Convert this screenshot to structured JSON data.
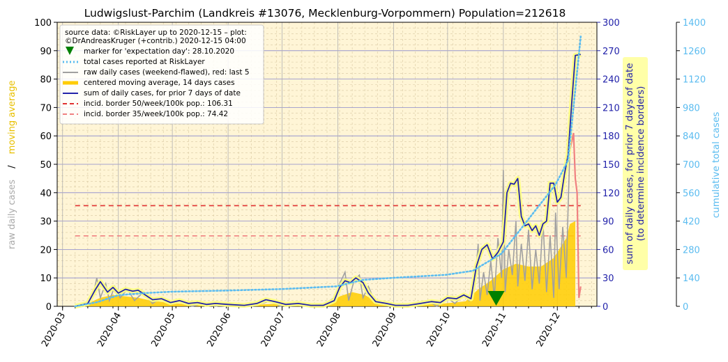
{
  "chart_data": {
    "type": "line",
    "title": "Ludwigslust-Parchim (Landkreis #13076, Mecklenburg-Vorpommern) Population=212618",
    "left_axis": {
      "label_raw": "raw daily cases",
      "label_sep": "/",
      "label_ma": "moving average",
      "ylim": [
        0,
        100
      ],
      "ticks": [
        "0",
        "10",
        "20",
        "30",
        "40",
        "50",
        "60",
        "70",
        "80",
        "90",
        "100"
      ]
    },
    "right_axis_1": {
      "label_line1": "sum of daily cases, for prior 7 days of date",
      "label_line2": "(to determine incidence borders)",
      "ylim": [
        0,
        300
      ],
      "ticks": [
        "0",
        "30",
        "60",
        "90",
        "120",
        "150",
        "180",
        "210",
        "240",
        "270",
        "300"
      ]
    },
    "right_axis_2": {
      "label": "cumulative total cases",
      "ylim": [
        0,
        1400
      ],
      "ticks": [
        "0",
        "140",
        "280",
        "420",
        "560",
        "700",
        "840",
        "980",
        "1120",
        "1260",
        "1400"
      ]
    },
    "x_axis": {
      "range": [
        "2020-02-27",
        "2020-12-23"
      ],
      "tick_dates": [
        "2020-03-01",
        "2020-04-01",
        "2020-05-01",
        "2020-06-01",
        "2020-07-01",
        "2020-08-01",
        "2020-09-01",
        "2020-10-01",
        "2020-11-01",
        "2020-12-01"
      ],
      "tick_labels": [
        "2020-03",
        "2020-04",
        "2020-05",
        "2020-06",
        "2020-07",
        "2020-08",
        "2020-09",
        "2020-10",
        "2020-11",
        "2020-12"
      ]
    },
    "legend": {
      "source_line1": "source data: ©RiskLayer up to 2020-12-15 – plot:",
      "source_line2": "©DrAndreasKruger (+contrib.) 2020-12-15 04:00",
      "items": [
        "marker for 'expectation day': 28.10.2020",
        "total cases reported at RiskLayer",
        "raw daily cases (weekend-flawed), red: last 5",
        "centered moving average, 14 days cases",
        "sum of daily cases, for prior 7 days of date",
        "incid. border 50/week/100k pop.: 106.31",
        "incid. border 35/week/100k pop.: 74.42"
      ]
    },
    "expectation_day": "2020-10-28",
    "incidence_50": 106.31,
    "incidence_35": 74.42,
    "colors": {
      "raw": "#a0a0a0",
      "raw_recent": "#f08080",
      "moving_average": "#ffcc00",
      "sum7": "#2222aa",
      "cumulative": "#5bbcf0",
      "incid50": "#e03030",
      "incid35": "#f08080",
      "marker": "#008000",
      "plot_bg": "#fff5d6"
    },
    "series": [
      {
        "name": "raw daily cases",
        "axis": "left",
        "points": [
          [
            "2020-03-08",
            0
          ],
          [
            "2020-03-15",
            1
          ],
          [
            "2020-03-18",
            4
          ],
          [
            "2020-03-20",
            10
          ],
          [
            "2020-03-22",
            3
          ],
          [
            "2020-03-25",
            8
          ],
          [
            "2020-03-27",
            2
          ],
          [
            "2020-03-30",
            7
          ],
          [
            "2020-04-02",
            3
          ],
          [
            "2020-04-06",
            6
          ],
          [
            "2020-04-10",
            2
          ],
          [
            "2020-04-15",
            5
          ],
          [
            "2020-04-20",
            1
          ],
          [
            "2020-04-25",
            3
          ],
          [
            "2020-05-01",
            1
          ],
          [
            "2020-05-06",
            2
          ],
          [
            "2020-05-12",
            0
          ],
          [
            "2020-05-18",
            1
          ],
          [
            "2020-05-25",
            0
          ],
          [
            "2020-06-01",
            1
          ],
          [
            "2020-06-10",
            0
          ],
          [
            "2020-06-20",
            1
          ],
          [
            "2020-06-25",
            2
          ],
          [
            "2020-06-30",
            0
          ],
          [
            "2020-07-05",
            1
          ],
          [
            "2020-07-15",
            0
          ],
          [
            "2020-07-25",
            1
          ],
          [
            "2020-07-30",
            3
          ],
          [
            "2020-08-02",
            8
          ],
          [
            "2020-08-05",
            12
          ],
          [
            "2020-08-07",
            2
          ],
          [
            "2020-08-10",
            9
          ],
          [
            "2020-08-13",
            11
          ],
          [
            "2020-08-15",
            3
          ],
          [
            "2020-08-18",
            7
          ],
          [
            "2020-08-22",
            1
          ],
          [
            "2020-08-28",
            1
          ],
          [
            "2020-09-05",
            0
          ],
          [
            "2020-09-12",
            1
          ],
          [
            "2020-09-20",
            2
          ],
          [
            "2020-09-25",
            0
          ],
          [
            "2020-10-01",
            3
          ],
          [
            "2020-10-05",
            1
          ],
          [
            "2020-10-10",
            4
          ],
          [
            "2020-10-13",
            2
          ],
          [
            "2020-10-16",
            6
          ],
          [
            "2020-10-18",
            22
          ],
          [
            "2020-10-19",
            2
          ],
          [
            "2020-10-21",
            12
          ],
          [
            "2020-10-23",
            4
          ],
          [
            "2020-10-25",
            16
          ],
          [
            "2020-10-27",
            3
          ],
          [
            "2020-10-29",
            24
          ],
          [
            "2020-10-31",
            10
          ],
          [
            "2020-11-01",
            48
          ],
          [
            "2020-11-02",
            5
          ],
          [
            "2020-11-04",
            20
          ],
          [
            "2020-11-06",
            11
          ],
          [
            "2020-11-08",
            30
          ],
          [
            "2020-11-09",
            7
          ],
          [
            "2020-11-11",
            22
          ],
          [
            "2020-11-13",
            9
          ],
          [
            "2020-11-15",
            27
          ],
          [
            "2020-11-17",
            6
          ],
          [
            "2020-11-19",
            20
          ],
          [
            "2020-11-21",
            8
          ],
          [
            "2020-11-23",
            30
          ],
          [
            "2020-11-25",
            5
          ],
          [
            "2020-11-27",
            25
          ],
          [
            "2020-11-29",
            3
          ],
          [
            "2020-11-30",
            33
          ],
          [
            "2020-12-02",
            6
          ],
          [
            "2020-12-04",
            28
          ],
          [
            "2020-12-06",
            10
          ],
          [
            "2020-12-07",
            35
          ],
          [
            "2020-12-08",
            55
          ]
        ]
      },
      {
        "name": "raw daily cases, last 5",
        "axis": "left",
        "points": [
          [
            "2020-12-10",
            61
          ],
          [
            "2020-12-11",
            45
          ],
          [
            "2020-12-12",
            40
          ],
          [
            "2020-12-13",
            3
          ],
          [
            "2020-12-14",
            7
          ]
        ]
      },
      {
        "name": "centered moving average, 14 days cases",
        "axis": "left",
        "points": [
          [
            "2020-03-08",
            0
          ],
          [
            "2020-03-15",
            1
          ],
          [
            "2020-03-22",
            3
          ],
          [
            "2020-03-29",
            4
          ],
          [
            "2020-04-05",
            3.5
          ],
          [
            "2020-04-12",
            3
          ],
          [
            "2020-04-19",
            2
          ],
          [
            "2020-04-26",
            1.5
          ],
          [
            "2020-05-03",
            1
          ],
          [
            "2020-05-10",
            0.8
          ],
          [
            "2020-05-17",
            0.5
          ],
          [
            "2020-05-24",
            0.5
          ],
          [
            "2020-05-31",
            0.4
          ],
          [
            "2020-06-07",
            0.3
          ],
          [
            "2020-06-14",
            0.4
          ],
          [
            "2020-06-21",
            0.7
          ],
          [
            "2020-06-28",
            0.9
          ],
          [
            "2020-07-05",
            0.5
          ],
          [
            "2020-07-12",
            0.3
          ],
          [
            "2020-07-19",
            0.3
          ],
          [
            "2020-07-26",
            1
          ],
          [
            "2020-08-02",
            3.5
          ],
          [
            "2020-08-09",
            5
          ],
          [
            "2020-08-16",
            4
          ],
          [
            "2020-08-23",
            1.5
          ],
          [
            "2020-08-30",
            0.5
          ],
          [
            "2020-09-06",
            0.4
          ],
          [
            "2020-09-13",
            0.5
          ],
          [
            "2020-09-20",
            0.7
          ],
          [
            "2020-09-27",
            0.9
          ],
          [
            "2020-10-04",
            1.3
          ],
          [
            "2020-10-11",
            1.8
          ],
          [
            "2020-10-18",
            6
          ],
          [
            "2020-10-25",
            9
          ],
          [
            "2020-11-01",
            13
          ],
          [
            "2020-11-08",
            15
          ],
          [
            "2020-11-15",
            14
          ],
          [
            "2020-11-22",
            14
          ],
          [
            "2020-11-29",
            17
          ],
          [
            "2020-12-06",
            24
          ],
          [
            "2020-12-08",
            29
          ],
          [
            "2020-12-11",
            30
          ]
        ]
      },
      {
        "name": "sum of daily cases, for prior 7 days of date",
        "axis": "right1",
        "points": [
          [
            "2020-03-08",
            0
          ],
          [
            "2020-03-15",
            3
          ],
          [
            "2020-03-19",
            17
          ],
          [
            "2020-03-22",
            26
          ],
          [
            "2020-03-26",
            15
          ],
          [
            "2020-03-29",
            20
          ],
          [
            "2020-04-01",
            14
          ],
          [
            "2020-04-05",
            18
          ],
          [
            "2020-04-09",
            16
          ],
          [
            "2020-04-12",
            17
          ],
          [
            "2020-04-16",
            12
          ],
          [
            "2020-04-20",
            7
          ],
          [
            "2020-04-25",
            8
          ],
          [
            "2020-04-30",
            4
          ],
          [
            "2020-05-05",
            6
          ],
          [
            "2020-05-10",
            3
          ],
          [
            "2020-05-15",
            4
          ],
          [
            "2020-05-20",
            2
          ],
          [
            "2020-05-25",
            3
          ],
          [
            "2020-06-01",
            2
          ],
          [
            "2020-06-10",
            1
          ],
          [
            "2020-06-17",
            3
          ],
          [
            "2020-06-22",
            7
          ],
          [
            "2020-06-27",
            5
          ],
          [
            "2020-07-03",
            2
          ],
          [
            "2020-07-10",
            3
          ],
          [
            "2020-07-17",
            1
          ],
          [
            "2020-07-24",
            1
          ],
          [
            "2020-07-30",
            6
          ],
          [
            "2020-08-02",
            20
          ],
          [
            "2020-08-05",
            27
          ],
          [
            "2020-08-08",
            25
          ],
          [
            "2020-08-11",
            30
          ],
          [
            "2020-08-15",
            25
          ],
          [
            "2020-08-18",
            14
          ],
          [
            "2020-08-22",
            5
          ],
          [
            "2020-08-28",
            3
          ],
          [
            "2020-09-02",
            1
          ],
          [
            "2020-09-09",
            1
          ],
          [
            "2020-09-16",
            3
          ],
          [
            "2020-09-22",
            5
          ],
          [
            "2020-09-27",
            4
          ],
          [
            "2020-10-01",
            9
          ],
          [
            "2020-10-06",
            8
          ],
          [
            "2020-10-10",
            12
          ],
          [
            "2020-10-14",
            8
          ],
          [
            "2020-10-17",
            42
          ],
          [
            "2020-10-20",
            60
          ],
          [
            "2020-10-23",
            65
          ],
          [
            "2020-10-26",
            50
          ],
          [
            "2020-10-29",
            57
          ],
          [
            "2020-11-01",
            68
          ],
          [
            "2020-11-03",
            120
          ],
          [
            "2020-11-05",
            130
          ],
          [
            "2020-11-07",
            129
          ],
          [
            "2020-11-09",
            135
          ],
          [
            "2020-11-11",
            95
          ],
          [
            "2020-11-13",
            85
          ],
          [
            "2020-11-15",
            87
          ],
          [
            "2020-11-17",
            80
          ],
          [
            "2020-11-19",
            85
          ],
          [
            "2020-11-21",
            75
          ],
          [
            "2020-11-23",
            87
          ],
          [
            "2020-11-25",
            90
          ],
          [
            "2020-11-27",
            130
          ],
          [
            "2020-11-29",
            130
          ],
          [
            "2020-12-01",
            110
          ],
          [
            "2020-12-03",
            115
          ],
          [
            "2020-12-05",
            140
          ],
          [
            "2020-12-07",
            160
          ],
          [
            "2020-12-09",
            215
          ],
          [
            "2020-12-11",
            265
          ],
          [
            "2020-12-14",
            266
          ]
        ]
      },
      {
        "name": "total cases reported at RiskLayer",
        "axis": "right2",
        "points": [
          [
            "2020-03-08",
            0
          ],
          [
            "2020-03-20",
            20
          ],
          [
            "2020-04-01",
            55
          ],
          [
            "2020-04-15",
            65
          ],
          [
            "2020-05-01",
            72
          ],
          [
            "2020-06-01",
            78
          ],
          [
            "2020-07-01",
            85
          ],
          [
            "2020-07-31",
            98
          ],
          [
            "2020-08-15",
            130
          ],
          [
            "2020-08-31",
            140
          ],
          [
            "2020-09-30",
            155
          ],
          [
            "2020-10-15",
            175
          ],
          [
            "2020-10-31",
            260
          ],
          [
            "2020-11-15",
            430
          ],
          [
            "2020-11-30",
            600
          ],
          [
            "2020-12-07",
            720
          ],
          [
            "2020-12-14",
            1330
          ]
        ]
      }
    ]
  }
}
